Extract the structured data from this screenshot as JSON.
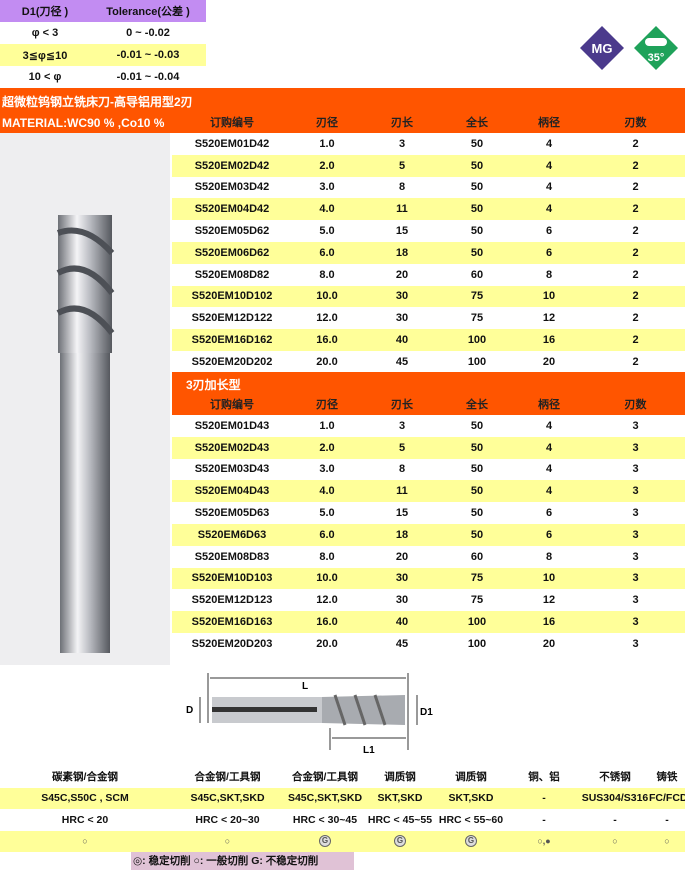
{
  "tolerance": {
    "headers": [
      "D1(刀径 )",
      "Tolerance(公差 )"
    ],
    "rows": [
      [
        "φ < 3",
        "0 ~ -0.02"
      ],
      [
        "3≦φ≦10",
        "-0.01 ~ -0.03"
      ],
      [
        "10 < φ",
        "-0.01 ~ -0.04"
      ]
    ]
  },
  "badges": {
    "mg": "MG",
    "angle": "35°"
  },
  "title": "超微粒钨钢立铣床刀-高导铝用型2刃",
  "material": "MATERIAL:WC90 % ,Co10 %",
  "columns": [
    "订购编号",
    "刃径",
    "刃长",
    "全长",
    "柄径",
    "刃数"
  ],
  "table1": [
    [
      "S520EM01D42",
      "1.0",
      "3",
      "50",
      "4",
      "2"
    ],
    [
      "S520EM02D42",
      "2.0",
      "5",
      "50",
      "4",
      "2"
    ],
    [
      "S520EM03D42",
      "3.0",
      "8",
      "50",
      "4",
      "2"
    ],
    [
      "S520EM04D42",
      "4.0",
      "11",
      "50",
      "4",
      "2"
    ],
    [
      "S520EM05D62",
      "5.0",
      "15",
      "50",
      "6",
      "2"
    ],
    [
      "S520EM06D62",
      "6.0",
      "18",
      "50",
      "6",
      "2"
    ],
    [
      "S520EM08D82",
      "8.0",
      "20",
      "60",
      "8",
      "2"
    ],
    [
      "S520EM10D102",
      "10.0",
      "30",
      "75",
      "10",
      "2"
    ],
    [
      "S520EM12D122",
      "12.0",
      "30",
      "75",
      "12",
      "2"
    ],
    [
      "S520EM16D162",
      "16.0",
      "40",
      "100",
      "16",
      "2"
    ],
    [
      "S520EM20D202",
      "20.0",
      "45",
      "100",
      "20",
      "2"
    ]
  ],
  "section2": "3刃加长型",
  "table2": [
    [
      "S520EM01D43",
      "1.0",
      "3",
      "50",
      "4",
      "3"
    ],
    [
      "S520EM02D43",
      "2.0",
      "5",
      "50",
      "4",
      "3"
    ],
    [
      "S520EM03D43",
      "3.0",
      "8",
      "50",
      "4",
      "3"
    ],
    [
      "S520EM04D43",
      "4.0",
      "11",
      "50",
      "4",
      "3"
    ],
    [
      "S520EM05D63",
      "5.0",
      "15",
      "50",
      "6",
      "3"
    ],
    [
      "S520EM6D63",
      "6.0",
      "18",
      "50",
      "6",
      "3"
    ],
    [
      "S520EM08D83",
      "8.0",
      "20",
      "60",
      "8",
      "3"
    ],
    [
      "S520EM10D103",
      "10.0",
      "30",
      "75",
      "10",
      "3"
    ],
    [
      "S520EM12D123",
      "12.0",
      "30",
      "75",
      "12",
      "3"
    ],
    [
      "S520EM16D163",
      "16.0",
      "40",
      "100",
      "16",
      "3"
    ],
    [
      "S520EM20D203",
      "20.0",
      "45",
      "100",
      "20",
      "3"
    ]
  ],
  "diagram": {
    "L": "L",
    "D": "D",
    "D1": "D1",
    "L1": "L1"
  },
  "materials": {
    "headers": [
      "碳素钢/合金钢",
      "合金钢/工具钢",
      "合金钢/工具钢",
      "调质钢",
      "调质钢",
      "铜、铝",
      "不锈钢",
      "铸铁"
    ],
    "grades": [
      "S45C,S50C , SCM",
      "S45C,SKT,SKD",
      "S45C,SKT,SKD",
      "SKT,SKD",
      "SKT,SKD",
      "-",
      "SUS304/S316",
      "FC/FCD"
    ],
    "hardness": [
      "HRC < 20",
      "HRC < 20~30",
      "HRC < 30~45",
      "HRC < 45~55",
      "HRC < 55~60",
      "-",
      "-",
      "-"
    ],
    "suitability": [
      "○",
      "○",
      "G",
      "G",
      "G",
      "○,●",
      "○",
      "○"
    ]
  },
  "legend": {
    "stable": "◎: 稳定切削",
    "general": "○: 一般切削",
    "unstable": "G: 不稳定切削"
  },
  "colors": {
    "orange": "#ff5500",
    "yellow": "#ffff99",
    "purple": "#c28cf2",
    "mg": "#4b3a8c",
    "green": "#1fa25a"
  }
}
